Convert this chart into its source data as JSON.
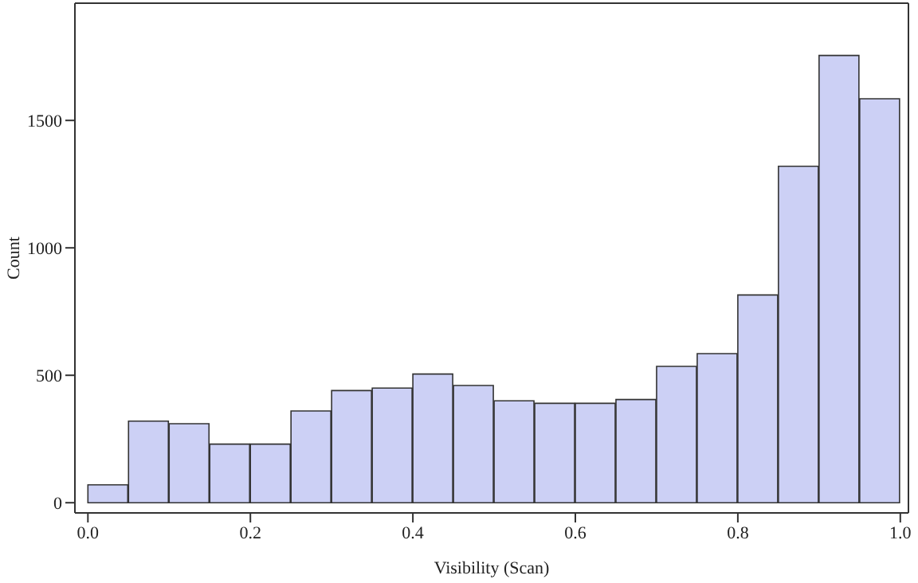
{
  "chart_data": {
    "type": "histogram",
    "xlabel": "Visibility (Scan)",
    "ylabel": "Count",
    "bins": [
      0,
      0.05,
      0.1,
      0.15,
      0.2,
      0.25,
      0.3,
      0.35,
      0.4,
      0.45,
      0.5,
      0.55,
      0.6,
      0.65,
      0.7,
      0.75,
      0.8,
      0.85,
      0.9,
      0.95,
      1.0
    ],
    "values": [
      70,
      320,
      310,
      230,
      230,
      360,
      440,
      450,
      505,
      460,
      400,
      390,
      390,
      405,
      535,
      585,
      815,
      1320,
      1755,
      1585
    ],
    "color": "#ccd0f5",
    "xlim": [
      -0.016,
      1.01
    ],
    "ylim": [
      -40,
      1960
    ],
    "xticks": [
      {
        "value": 0,
        "label": "0.0"
      },
      0.2,
      0.4,
      0.6,
      0.8,
      {
        "value": 1,
        "label": "1.0"
      }
    ],
    "yticks": [
      0,
      500,
      1000,
      1500
    ],
    "grid": false
  }
}
